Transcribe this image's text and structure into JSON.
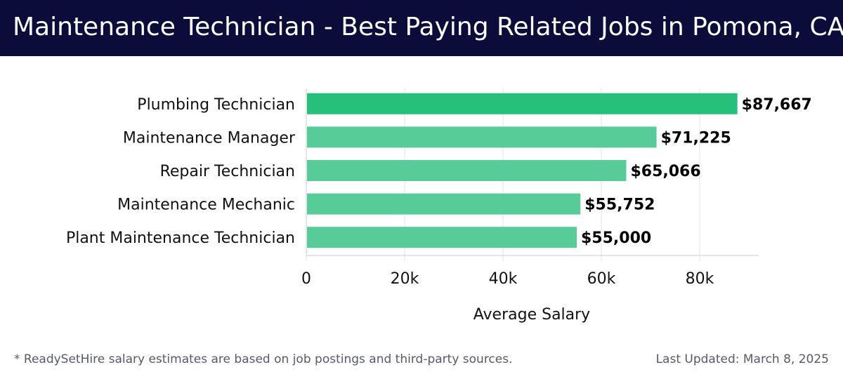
{
  "header": {
    "title": "Maintenance Technician - Best Paying Related Jobs in Pomona, CA"
  },
  "footer": {
    "note": "* ReadySetHire salary estimates are based on job postings and third-party sources.",
    "updated": "Last Updated: March 8, 2025"
  },
  "colors": {
    "header_bg": "#0b0c3a",
    "bar_top": "#27c07a",
    "bar_light": "#57cc98",
    "grid": "#e3e3e3"
  },
  "chart_data": {
    "type": "bar",
    "orientation": "horizontal",
    "categories": [
      "Plumbing Technician",
      "Maintenance Manager",
      "Repair Technician",
      "Maintenance Mechanic",
      "Plant Maintenance Technician"
    ],
    "values": [
      87667,
      71225,
      65066,
      55752,
      55000
    ],
    "value_labels": [
      "$87,667",
      "$71,225",
      "$65,066",
      "$55,752",
      "$55,000"
    ],
    "xlabel": "Average Salary",
    "ylabel": "",
    "xlim": [
      0,
      92000
    ],
    "xticks": [
      0,
      20000,
      40000,
      60000,
      80000
    ],
    "xtick_labels": [
      "0",
      "20k",
      "40k",
      "60k",
      "80k"
    ],
    "grid": true
  }
}
